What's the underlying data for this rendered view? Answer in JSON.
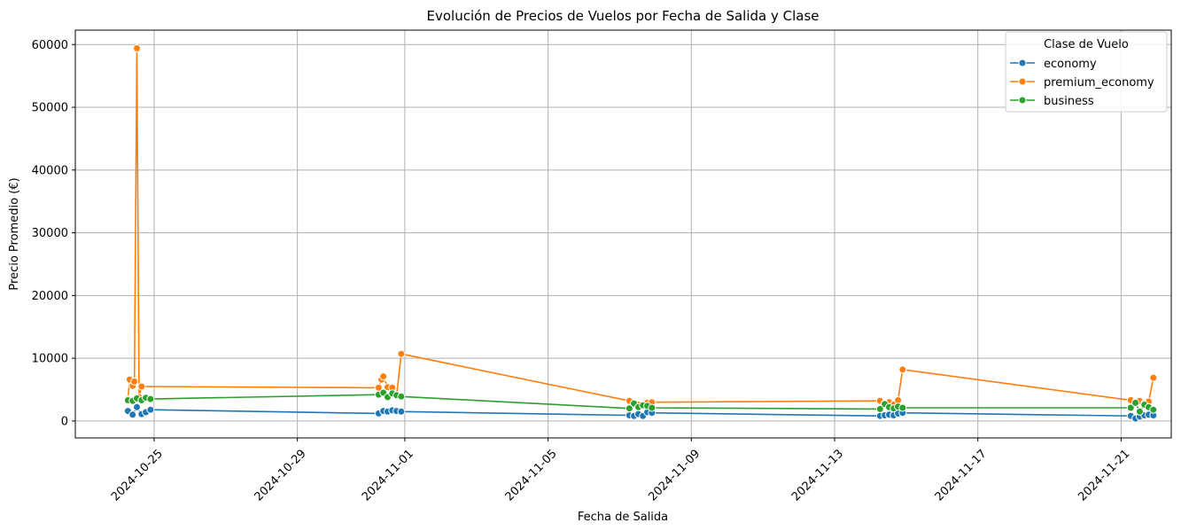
{
  "chart_data": {
    "type": "line",
    "title": "Evolución de Precios de Vuelos por Fecha de Salida y Clase",
    "xlabel": "Fecha de Salida",
    "ylabel": "Precio Promedio (€)",
    "x_type": "date",
    "xlim": [
      -2.2,
      28.4
    ],
    "ylim": [
      -2700,
      62300
    ],
    "x_ticks": [
      {
        "label": "2024-10-25",
        "value": 0
      },
      {
        "label": "2024-10-29",
        "value": 4
      },
      {
        "label": "2024-11-01",
        "value": 7
      },
      {
        "label": "2024-11-05",
        "value": 11
      },
      {
        "label": "2024-11-09",
        "value": 15
      },
      {
        "label": "2024-11-13",
        "value": 19
      },
      {
        "label": "2024-11-17",
        "value": 23
      },
      {
        "label": "2024-11-21",
        "value": 27
      }
    ],
    "y_ticks": [
      0,
      10000,
      20000,
      30000,
      40000,
      50000,
      60000
    ],
    "grid": true,
    "legend": {
      "title": "Clase de Vuelo",
      "placement": "top-right"
    },
    "series": [
      {
        "name": "economy",
        "color": "#1f77b4",
        "x": [
          -0.73,
          -0.6,
          -0.48,
          -0.35,
          -0.23,
          -0.1,
          6.27,
          6.4,
          6.52,
          6.65,
          6.77,
          6.9,
          13.27,
          13.4,
          13.52,
          13.65,
          13.77,
          13.9,
          20.27,
          20.4,
          20.52,
          20.65,
          20.77,
          20.9,
          27.27,
          27.4,
          27.52,
          27.65,
          27.77,
          27.9
        ],
        "values": [
          1600,
          1000,
          2200,
          1100,
          1400,
          1800,
          1200,
          1600,
          1500,
          1700,
          1600,
          1500,
          900,
          800,
          1100,
          800,
          1400,
          1300,
          800,
          900,
          1000,
          900,
          1200,
          1300,
          800,
          400,
          700,
          900,
          1000,
          900
        ]
      },
      {
        "name": "premium_economy",
        "color": "#ff7f0e",
        "x": [
          -0.73,
          -0.68,
          -0.6,
          -0.55,
          -0.48,
          -0.42,
          -0.35,
          6.27,
          6.35,
          6.4,
          6.52,
          6.65,
          6.77,
          6.9,
          13.27,
          13.4,
          13.52,
          13.65,
          13.77,
          13.9,
          20.27,
          20.4,
          20.52,
          20.65,
          20.77,
          20.9,
          27.27,
          27.4,
          27.52,
          27.65,
          27.77,
          27.9
        ],
        "values": [
          3500,
          6600,
          5600,
          6300,
          59400,
          3800,
          5500,
          5300,
          6600,
          7100,
          5400,
          5300,
          4000,
          10700,
          3200,
          2800,
          2600,
          2400,
          2900,
          3000,
          3200,
          2800,
          3000,
          2600,
          3300,
          8200,
          3300,
          3000,
          3200,
          2800,
          3100,
          6900
        ]
      },
      {
        "name": "business",
        "color": "#2ca02c",
        "x": [
          -0.73,
          -0.6,
          -0.48,
          -0.35,
          -0.23,
          -0.1,
          6.27,
          6.4,
          6.52,
          6.65,
          6.77,
          6.9,
          13.27,
          13.4,
          13.52,
          13.65,
          13.77,
          13.9,
          20.27,
          20.4,
          20.52,
          20.65,
          20.77,
          20.9,
          27.27,
          27.4,
          27.52,
          27.65,
          27.77,
          27.9
        ],
        "values": [
          3300,
          3200,
          3600,
          3300,
          3700,
          3500,
          4200,
          4500,
          3800,
          4400,
          4100,
          3900,
          2000,
          2800,
          2200,
          2500,
          2400,
          2100,
          1900,
          2700,
          2200,
          2000,
          2300,
          2100,
          2100,
          2900,
          1500,
          2600,
          2200,
          1800
        ]
      }
    ]
  }
}
